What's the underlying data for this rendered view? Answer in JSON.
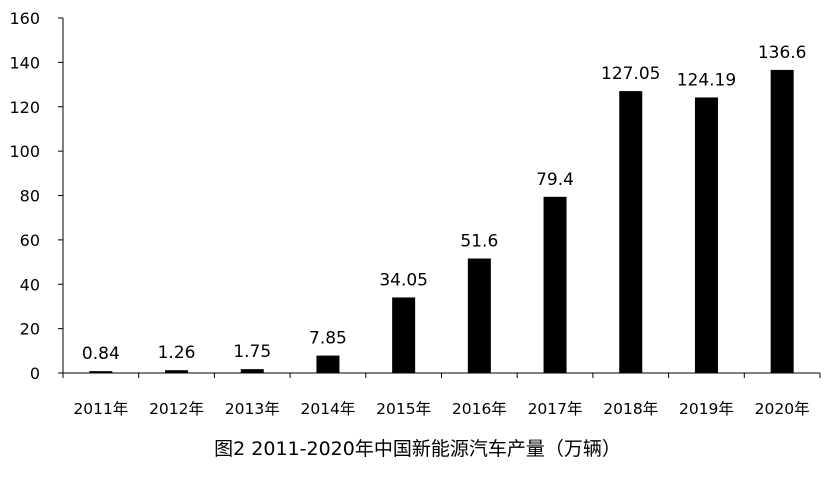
{
  "chart_data": {
    "type": "bar",
    "categories": [
      "2011年",
      "2012年",
      "2013年",
      "2014年",
      "2015年",
      "2016年",
      "2017年",
      "2018年",
      "2019年",
      "2020年"
    ],
    "values": [
      0.84,
      1.26,
      1.75,
      7.85,
      34.05,
      51.6,
      79.4,
      127.05,
      124.19,
      136.6
    ],
    "data_labels": [
      "0.84",
      "1.26",
      "1.75",
      "7.85",
      "34.05",
      "51.6",
      "79.4",
      "127.05",
      "124.19",
      "136.6"
    ],
    "y_ticks": [
      0,
      20,
      40,
      60,
      80,
      100,
      120,
      140,
      160
    ],
    "ylim": [
      0,
      160
    ],
    "grid": false,
    "legend": "none",
    "bar_color": "#000000",
    "caption": "图2  2011-2020年中国新能源汽车产量（万辆）"
  }
}
